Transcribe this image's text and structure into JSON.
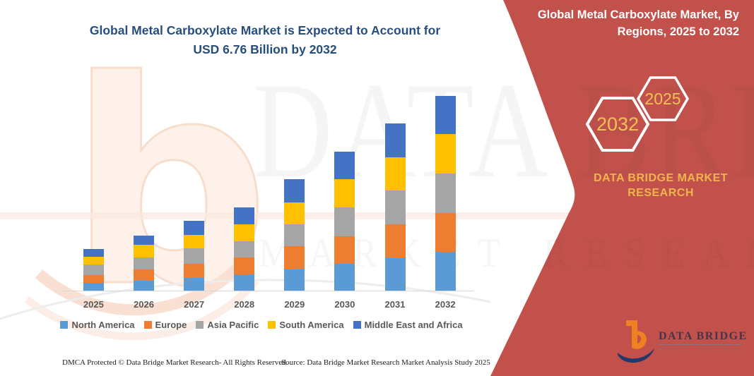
{
  "left_header": {
    "title_line1": "Global Metal Carboxylate Market is Expected to Account for",
    "title_line2": "USD 6.76 Billion by 2032",
    "title_color": "#274e7d"
  },
  "right_panel": {
    "bg_color": "#c2514b",
    "title_line1": "Global Metal Carboxylate Market, By",
    "title_line2": "Regions, 2025 to 2032",
    "hexagons": [
      {
        "label": "2032"
      },
      {
        "label": "2025"
      }
    ],
    "hexagon_text_color": "#f2c155",
    "brand_line1": "DATA BRIDGE MARKET",
    "brand_line2": "RESEARCH",
    "brand_text_color": "#f0b44c"
  },
  "logo": {
    "name": "DATA BRIDGE",
    "subtitle": "MARKET RESEARCH",
    "icon_b_color": "#ef8123",
    "icon_swoosh_color": "#23386b"
  },
  "watermark": {
    "row1": "DATA BRIDGE",
    "row2": "MARKET RESEARCH"
  },
  "footer": {
    "dmca": "DMCA Protected © Data Bridge Market Research-  All Rights Reserved.",
    "source": "Source: Data Bridge Market Research  Market Analysis Study 2025"
  },
  "chart_data": {
    "type": "bar",
    "stacked": true,
    "title": "Global Metal Carboxylate Market, By Regions, 2025 to 2032",
    "unit": "USD Billion",
    "categories": [
      "2025",
      "2026",
      "2027",
      "2028",
      "2029",
      "2030",
      "2031",
      "2032"
    ],
    "series": [
      {
        "name": "North America",
        "color": "#5B9BD5",
        "values": [
          0.29,
          0.35,
          0.44,
          0.57,
          0.75,
          0.94,
          1.14,
          1.36
        ]
      },
      {
        "name": "Europe",
        "color": "#ED7D31",
        "values": [
          0.27,
          0.4,
          0.51,
          0.6,
          0.8,
          0.95,
          1.16,
          1.35
        ]
      },
      {
        "name": "Asia Pacific",
        "color": "#A5A5A5",
        "values": [
          0.36,
          0.42,
          0.53,
          0.56,
          0.76,
          1.0,
          1.17,
          1.36
        ]
      },
      {
        "name": "South America",
        "color": "#FFC000",
        "values": [
          0.27,
          0.42,
          0.45,
          0.58,
          0.76,
          0.98,
          1.16,
          1.36
        ]
      },
      {
        "name": "Middle East and Africa",
        "color": "#4472C4",
        "values": [
          0.27,
          0.33,
          0.49,
          0.59,
          0.8,
          0.95,
          1.17,
          1.33
        ]
      }
    ],
    "totals_usd_billion": [
      1.45,
      1.92,
      2.41,
      2.91,
      3.87,
      4.82,
      5.79,
      6.76
    ],
    "callout_total_2032": 6.76,
    "ylim": [
      0,
      7
    ],
    "gridlines": false,
    "y_axis_visible": false,
    "legend_position": "bottom",
    "axis_label_color": "#595959"
  }
}
